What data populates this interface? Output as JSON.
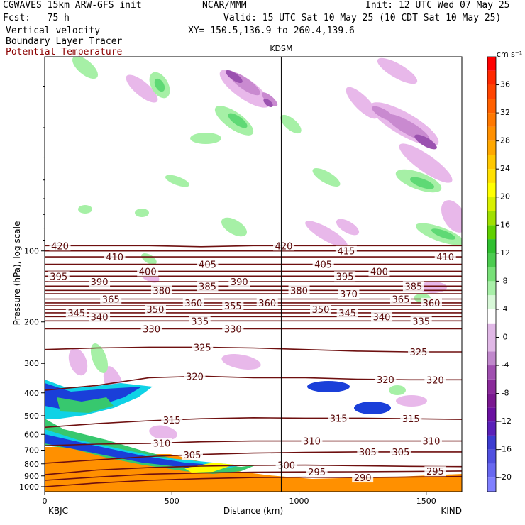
{
  "header": {
    "model": "CGWAVES 15km ARW-GFS init",
    "fcst": "Fcst:   75 h",
    "field1": "Vertical velocity",
    "field2": "Boundary Layer Tracer",
    "field3": "Potential Temperature",
    "org": "NCAR/MMM",
    "init": "Init: 12 UTC Wed 07 May 25",
    "valid": "Valid: 15 UTC Sat 10 May 25 (10 CDT Sat 10 May 25)",
    "xy": "XY= 150.5,136.9 to 260.4,139.6"
  },
  "colors": {
    "theta": "#6e0f0f",
    "bl_high": "#1a3fd9",
    "bl_mid": "#0fd2e6",
    "bl_low": "#37c86e",
    "ascent_weak": "#a6f0a6",
    "ascent_mod": "#5fd975",
    "descent_weak": "#e8b8ea",
    "descent_mod": "#c98ad0",
    "descent_strong": "#9b52b0"
  },
  "chart_data": {
    "type": "heatmap",
    "title": "",
    "xlabel": "Distance (km)",
    "ylabel": "Pressure (hPa), log scale",
    "xlim": [
      0,
      1640
    ],
    "ylim": [
      1050,
      15
    ],
    "yscale": "log",
    "x_ticks": [
      0,
      500,
      1000,
      1500
    ],
    "y_ticks": [
      100,
      200,
      300,
      400,
      500,
      600,
      700,
      800,
      900,
      1000
    ],
    "endpoints": {
      "left": "KBJC",
      "right": "KIND",
      "marker": "KDSM",
      "marker_x": 930
    },
    "colorbar": {
      "units": "cm s⁻¹",
      "ticks": [
        "36",
        "32",
        "28",
        "24",
        "20",
        "16",
        "12",
        "8",
        "4",
        "0",
        "-4",
        "-8",
        "-12",
        "-16",
        "-20"
      ],
      "levels": [
        -22,
        -20,
        -18,
        -16,
        -14,
        -12,
        -10,
        -8,
        -6,
        -4,
        -2,
        2,
        4,
        6,
        8,
        10,
        12,
        14,
        16,
        18,
        20,
        22,
        24,
        26,
        28,
        30,
        32,
        34,
        36,
        38,
        40
      ],
      "colors": [
        "#8080ff",
        "#6868f0",
        "#5050e0",
        "#3c3cd0",
        "#5a20b8",
        "#6a10a0",
        "#7a1890",
        "#8a2a9a",
        "#a050b0",
        "#c088cc",
        "#e0b8e6",
        "#ffffff",
        "#d8f8d8",
        "#a8f0a8",
        "#78e078",
        "#4ccc50",
        "#30c030",
        "#60d000",
        "#a0e000",
        "#d8f000",
        "#ffff00",
        "#ffe000",
        "#ffc800",
        "#ffa800",
        "#ff9000",
        "#ff7800",
        "#ff6000",
        "#ff4400",
        "#ff2800",
        "#ff0000"
      ]
    },
    "theta_contours": [
      {
        "value": 420,
        "p": [
          95,
          95,
          95,
          96,
          95,
          95,
          95,
          95,
          95
        ],
        "labels_x": [
          60,
          940
        ]
      },
      {
        "value": 415,
        "p": [
          100,
          100,
          100,
          100,
          100,
          100,
          100,
          100,
          100
        ],
        "labels_x": [
          1185
        ]
      },
      {
        "value": 410,
        "p": [
          106,
          106,
          106,
          106,
          106,
          106,
          106,
          106,
          106
        ],
        "labels_x": [
          275,
          1575
        ]
      },
      {
        "value": 405,
        "p": [
          114,
          114,
          114,
          114,
          114,
          114,
          114,
          114,
          114
        ],
        "labels_x": [
          640,
          1095
        ]
      },
      {
        "value": 400,
        "p": [
          122,
          122,
          122,
          122,
          122,
          122,
          122,
          122,
          122
        ],
        "labels_x": [
          405,
          1315
        ]
      },
      {
        "value": 395,
        "p": [
          128,
          128,
          128,
          128,
          128,
          128,
          128,
          128,
          128
        ],
        "labels_x": [
          55,
          1180
        ]
      },
      {
        "value": 390,
        "p": [
          135,
          135,
          135,
          135,
          135,
          135,
          135,
          135,
          135
        ],
        "labels_x": [
          215,
          765
        ]
      },
      {
        "value": 385,
        "p": [
          141,
          141,
          141,
          141,
          141,
          141,
          141,
          141,
          141
        ],
        "labels_x": [
          640,
          1450
        ]
      },
      {
        "value": 380,
        "p": [
          147,
          147,
          147,
          147,
          147,
          147,
          147,
          147,
          147
        ],
        "labels_x": [
          460,
          1000
        ]
      },
      {
        "value": 370,
        "p": [
          152,
          152,
          152,
          152,
          152,
          152,
          152,
          152,
          152
        ],
        "labels_x": [
          1195
        ]
      },
      {
        "value": 365,
        "p": [
          160,
          160,
          160,
          160,
          160,
          160,
          160,
          160,
          160
        ],
        "labels_x": [
          260,
          1400
        ]
      },
      {
        "value": 360,
        "p": [
          166,
          166,
          166,
          166,
          166,
          166,
          166,
          166,
          166
        ],
        "labels_x": [
          585,
          875,
          1520
        ]
      },
      {
        "value": 355,
        "p": [
          171,
          171,
          171,
          171,
          171,
          171,
          171,
          171,
          171
        ],
        "labels_x": [
          740
        ]
      },
      {
        "value": 350,
        "p": [
          177,
          177,
          177,
          177,
          177,
          177,
          177,
          177,
          177
        ],
        "labels_x": [
          435,
          1085
        ]
      },
      {
        "value": 345,
        "p": [
          183,
          183,
          183,
          183,
          183,
          183,
          183,
          183,
          183
        ],
        "labels_x": [
          125,
          1190
        ]
      },
      {
        "value": 340,
        "p": [
          190,
          190,
          190,
          190,
          190,
          190,
          190,
          190,
          190
        ],
        "labels_x": [
          215,
          1325
        ]
      },
      {
        "value": 335,
        "p": [
          198,
          198,
          198,
          198,
          198,
          198,
          198,
          198,
          198
        ],
        "labels_x": [
          610,
          1480
        ]
      },
      {
        "value": 330,
        "p": [
          214,
          214,
          214,
          214,
          214,
          214,
          214,
          214,
          214
        ],
        "labels_x": [
          420,
          740
        ]
      },
      {
        "value": 325,
        "p": [
          262,
          258,
          256,
          256,
          258,
          262,
          266,
          268,
          268
        ],
        "labels_x": [
          620,
          1470
        ]
      },
      {
        "value": 320,
        "p": [
          390,
          372,
          345,
          340,
          345,
          345,
          350,
          352,
          352
        ],
        "labels_x": [
          590,
          1340,
          1535
        ]
      },
      {
        "value": 315,
        "p": [
          560,
          540,
          525,
          515,
          510,
          512,
          512,
          515,
          518
        ],
        "labels_x": [
          500,
          1155,
          1440
        ]
      },
      {
        "value": 310,
        "p": [
          670,
          660,
          655,
          645,
          640,
          640,
          640,
          640,
          640
        ],
        "labels_x": [
          460,
          1050,
          1520
        ]
      },
      {
        "value": 305,
        "p": [
          795,
          770,
          745,
          730,
          720,
          715,
          712,
          712,
          712
        ],
        "labels_x": [
          580,
          1270,
          1400
        ]
      },
      {
        "value": 300,
        "p": [
          890,
          850,
          830,
          818,
          812,
          810,
          815,
          820,
          822
        ],
        "labels_x": [
          950
        ]
      },
      {
        "value": 295,
        "p": [
          940,
          910,
          885,
          875,
          868,
          866,
          865,
          862,
          858
        ],
        "labels_x": [
          1070,
          1535
        ]
      },
      {
        "value": 290,
        "p": [
          1000,
          965,
          940,
          925,
          915,
          912,
          915,
          910,
          905
        ],
        "labels_x": [
          1250
        ]
      }
    ],
    "contour_x": [
      0,
      205,
      410,
      615,
      820,
      1025,
      1230,
      1435,
      1640
    ]
  }
}
